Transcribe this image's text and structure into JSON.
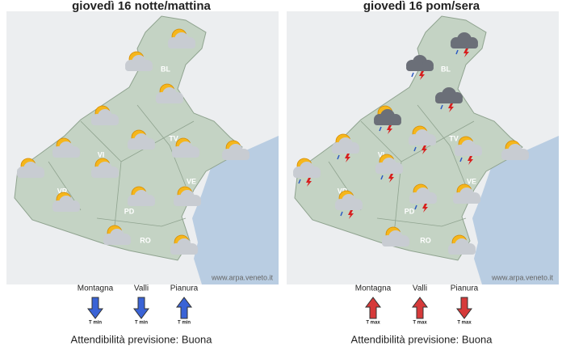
{
  "panels": [
    {
      "title": "giovedì 16 notte/mattina",
      "province_labels": [
        "BL",
        "TV",
        "VI",
        "VR",
        "PD",
        "RO",
        "VE"
      ],
      "credit": "www.arpa.veneto.it",
      "zones": [
        {
          "label": "Montagna",
          "trend": "T min"
        },
        {
          "label": "Valli",
          "trend": "T min"
        },
        {
          "label": "Pianura",
          "trend": "T min"
        }
      ],
      "reliability": "Attendibilità previsione: Buona"
    },
    {
      "title": "giovedì 16 pom/sera",
      "province_labels": [
        "BL",
        "TV",
        "VI",
        "VR",
        "PD",
        "RO",
        "VE"
      ],
      "credit": "www.arpa.veneto.it",
      "zones": [
        {
          "label": "Montagna",
          "trend": "T max"
        },
        {
          "label": "Valli",
          "trend": "T max"
        },
        {
          "label": "Pianura",
          "trend": "T max"
        }
      ],
      "reliability": "Attendibilità previsione: Buona"
    }
  ]
}
